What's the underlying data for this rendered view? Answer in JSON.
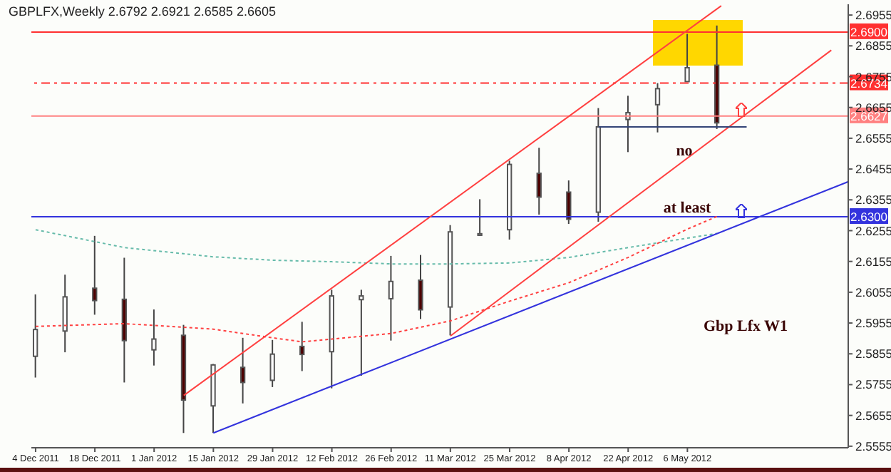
{
  "chart_data": {
    "type": "candlestick",
    "title": "GBPLFX,Weekly  2.6792 2.6921 2.6585 2.6605",
    "x": [
      "2011-12-04",
      "2011-12-11",
      "2011-12-18",
      "2011-12-25",
      "2012-01-01",
      "2012-01-08",
      "2012-01-15",
      "2012-01-22",
      "2012-01-29",
      "2012-02-05",
      "2012-02-12",
      "2012-02-19",
      "2012-02-26",
      "2012-03-04",
      "2012-03-11",
      "2012-03-18",
      "2012-03-25",
      "2012-04-01",
      "2012-04-08",
      "2012-04-15",
      "2012-04-22",
      "2012-04-29",
      "2012-05-06",
      "2012-05-13"
    ],
    "ohlc": [
      [
        2.5847,
        2.6048,
        2.5778,
        2.5934
      ],
      [
        2.5929,
        2.6112,
        2.586,
        2.604
      ],
      [
        2.6068,
        2.6238,
        2.5982,
        2.6028
      ],
      [
        2.6032,
        2.6167,
        2.5762,
        2.5898
      ],
      [
        2.5868,
        2.5999,
        2.5817,
        2.5903
      ],
      [
        2.5915,
        2.5949,
        2.5598,
        2.5705
      ],
      [
        2.5686,
        2.5822,
        2.5598,
        2.5819
      ],
      [
        2.5811,
        2.5907,
        2.5694,
        2.5762
      ],
      [
        2.5769,
        2.59,
        2.5747,
        2.5854
      ],
      [
        2.5879,
        2.5959,
        2.5799,
        2.5853
      ],
      [
        2.5862,
        2.6063,
        2.5743,
        2.6043
      ],
      [
        2.6031,
        2.6063,
        2.5784,
        2.6043
      ],
      [
        2.6034,
        2.6173,
        2.5898,
        2.609
      ],
      [
        2.6094,
        2.6176,
        2.5968,
        2.5998
      ],
      [
        2.6007,
        2.6273,
        2.5915,
        2.6251
      ],
      [
        2.6245,
        2.6357,
        2.6238,
        2.624
      ],
      [
        2.6258,
        2.6482,
        2.6226,
        2.647
      ],
      [
        2.6441,
        2.6524,
        2.6307,
        2.6364
      ],
      [
        2.638,
        2.6418,
        2.6277,
        2.6292
      ],
      [
        2.6315,
        2.6653,
        2.6284,
        2.6592
      ],
      [
        2.6616,
        2.6693,
        2.651,
        2.6638
      ],
      [
        2.6664,
        2.6734,
        2.6574,
        2.6716
      ],
      [
        2.6739,
        2.6894,
        2.6739,
        2.6784
      ],
      [
        2.6792,
        2.6921,
        2.6585,
        2.6605
      ]
    ],
    "colors": [
      "#ffffff",
      "#ffffff",
      "#4d0000",
      "#4d0000",
      "#ffffff",
      "#4d0000",
      "#ffffff",
      "#4d0000",
      "#ffffff",
      "#4d0000",
      "#ffffff",
      "#ffffff",
      "#ffffff",
      "#4d0000",
      "#ffffff",
      "#ffffff",
      "#ffffff",
      "#4d0000",
      "#4d0000",
      "#ffffff",
      "#ffffff",
      "#ffffff",
      "#ffffff",
      "#4d0000"
    ],
    "series": [
      {
        "type": "line",
        "color": "#66bbaa",
        "line_style": "dotted",
        "x": [
          "2011-12-04",
          "2011-12-25",
          "2012-01-15",
          "2012-01-29",
          "2012-02-12",
          "2012-02-26",
          "2012-03-11",
          "2012-03-25",
          "2012-04-08",
          "2012-04-22",
          "2012-05-13"
        ],
        "values": [
          2.6258,
          2.62,
          2.617,
          2.6159,
          2.6154,
          2.6147,
          2.6147,
          2.615,
          2.6168,
          2.62,
          2.6246
        ]
      },
      {
        "type": "line",
        "color": "#ff4040",
        "line_style": "dotted",
        "x": [
          "2011-12-04",
          "2011-12-25",
          "2012-01-15",
          "2012-01-29",
          "2012-02-05",
          "2012-02-12",
          "2012-02-26",
          "2012-03-11",
          "2012-03-25",
          "2012-04-08",
          "2012-04-22",
          "2012-05-06",
          "2012-05-13"
        ],
        "values": [
          2.5944,
          2.5953,
          2.5935,
          2.5907,
          2.5894,
          2.5903,
          2.5921,
          2.5962,
          2.6026,
          2.6086,
          2.6168,
          2.626,
          2.6301
        ]
      },
      {
        "type": "line",
        "color": "#ff4040",
        "line_style": "solid",
        "x": [
          "2012-01-08",
          "2012-05-14"
        ],
        "values": [
          2.572,
          2.6985
        ]
      },
      {
        "type": "line",
        "color": "#ff4040",
        "line_style": "solid",
        "x": [
          "2012-03-11",
          "2012-06-09"
        ],
        "values": [
          2.5913,
          2.6841
        ]
      },
      {
        "type": "line",
        "color": "#3333dd",
        "line_style": "solid",
        "x": [
          "2012-01-15",
          "2012-06-13"
        ],
        "values": [
          2.5598,
          2.6414
        ]
      },
      {
        "type": "line",
        "color": "#334477",
        "line_style": "solid",
        "x": [
          "2012-04-15",
          "2012-05-20"
        ],
        "values": [
          2.6592,
          2.6592
        ]
      }
    ],
    "ref_lines": [
      {
        "axis": "y",
        "value": 2.69,
        "label": "2.6900",
        "color": "#ff3030",
        "line_style": "solid"
      },
      {
        "axis": "y",
        "value": 2.6734,
        "label": "2.6734",
        "color": "#ff3030",
        "line_style": "dashed"
      },
      {
        "axis": "y",
        "value": 2.6627,
        "label": "2.6627",
        "color": "#ff8080",
        "line_style": "solid"
      },
      {
        "axis": "y",
        "value": 2.63,
        "label": "2.6300",
        "color": "#3333dd",
        "line_style": "solid"
      }
    ],
    "annotations": [
      "no",
      "at least",
      "Gbp Lfx W1"
    ],
    "xlim": [
      "2011-12-03",
      "2012-06-13"
    ],
    "xticks": [
      {
        "value": "2011-12-04",
        "label": "4 Dec 2011"
      },
      {
        "value": "2011-12-18",
        "label": "18 Dec 2011"
      },
      {
        "value": "2012-01-01",
        "label": "1 Jan 2012"
      },
      {
        "value": "2012-01-15",
        "label": "15 Jan 2012"
      },
      {
        "value": "2012-01-29",
        "label": "29 Jan 2012"
      },
      {
        "value": "2012-02-12",
        "label": "12 Feb 2012"
      },
      {
        "value": "2012-02-26",
        "label": "26 Feb 2012"
      },
      {
        "value": "2012-03-11",
        "label": "11 Mar 2012"
      },
      {
        "value": "2012-03-25",
        "label": "25 Mar 2012"
      },
      {
        "value": "2012-04-08",
        "label": "8 Apr 2012"
      },
      {
        "value": "2012-04-22",
        "label": "22 Apr 2012"
      },
      {
        "value": "2012-05-06",
        "label": "6 May 2012"
      }
    ],
    "ylim": [
      2.555,
      2.699
    ],
    "yticks": [
      2.5555,
      2.5655,
      2.5755,
      2.5855,
      2.5955,
      2.6055,
      2.6155,
      2.6255,
      2.6355,
      2.6455,
      2.6555,
      2.6655,
      2.6755,
      2.6855,
      2.6955
    ]
  }
}
